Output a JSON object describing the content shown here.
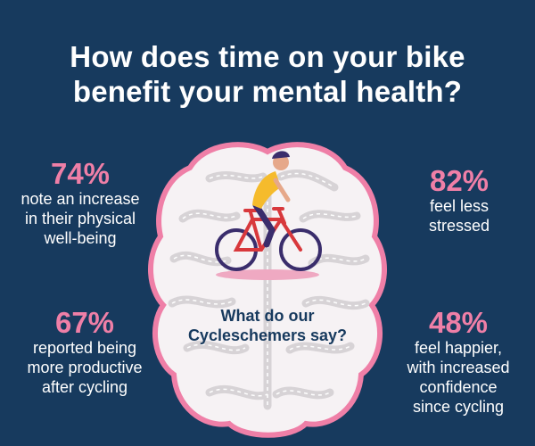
{
  "title": {
    "line1": "How does time on your bike",
    "line2": "benefit your mental health?"
  },
  "stats": {
    "physical": {
      "pct": "74%",
      "lines": [
        "note an increase",
        "in their physical",
        "well-being"
      ]
    },
    "stress": {
      "pct": "82%",
      "lines": [
        "feel less",
        "stressed"
      ]
    },
    "productive": {
      "pct": "67%",
      "lines": [
        "reported being",
        "more productive",
        "after cycling"
      ]
    },
    "happier": {
      "pct": "48%",
      "lines": [
        "feel happier,",
        "with increased",
        "confidence",
        "since cycling"
      ]
    }
  },
  "brain": {
    "caption_line1": "What do our",
    "caption_line2": "Cycleschemers say?"
  },
  "colors": {
    "background": "#173a5e",
    "accent_pink": "#ef7fa7",
    "brain_fill": "#f6f2f4",
    "road_grey": "#d7d3d6",
    "bike_red": "#d8383c",
    "rider_yellow": "#f5bb2c",
    "rider_purple": "#3a2d6c"
  }
}
